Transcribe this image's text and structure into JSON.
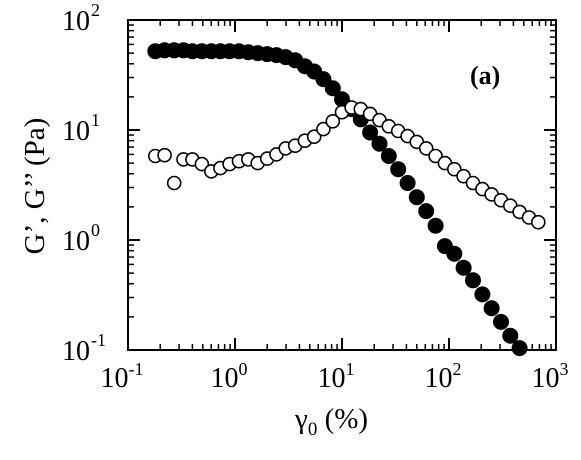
{
  "chart_data": {
    "type": "scatter",
    "panel_label": "(a)",
    "xlabel": {
      "base": "γ",
      "sub": "0",
      "rest": " (%)"
    },
    "ylabel": "G’, G’’ (Pa)",
    "xscale": "log",
    "yscale": "log",
    "xlim": [
      0.1,
      1000
    ],
    "ylim": [
      0.1,
      100
    ],
    "grid": false,
    "x_ticks": [
      {
        "base": "10",
        "exp": "-1",
        "value": 0.1
      },
      {
        "base": "10",
        "exp": "0",
        "value": 1
      },
      {
        "base": "10",
        "exp": "1",
        "value": 10
      },
      {
        "base": "10",
        "exp": "2",
        "value": 100
      },
      {
        "base": "10",
        "exp": "3",
        "value": 1000
      }
    ],
    "y_ticks": [
      {
        "base": "10",
        "exp": "-1",
        "value": 0.1
      },
      {
        "base": "10",
        "exp": "0",
        "value": 1
      },
      {
        "base": "10",
        "exp": "1",
        "value": 10
      },
      {
        "base": "10",
        "exp": "2",
        "value": 100
      }
    ],
    "series": [
      {
        "marker": "filled-circle",
        "color": "#000000",
        "points": [
          [
            0.18,
            52
          ],
          [
            0.22,
            53
          ],
          [
            0.27,
            53
          ],
          [
            0.33,
            53
          ],
          [
            0.4,
            52
          ],
          [
            0.49,
            52
          ],
          [
            0.6,
            52
          ],
          [
            0.73,
            52
          ],
          [
            0.89,
            52
          ],
          [
            1.09,
            52
          ],
          [
            1.33,
            51
          ],
          [
            1.63,
            50
          ],
          [
            2.0,
            49
          ],
          [
            2.44,
            48
          ],
          [
            2.98,
            46
          ],
          [
            3.65,
            43
          ],
          [
            4.5,
            38
          ],
          [
            5.5,
            34
          ],
          [
            6.7,
            29
          ],
          [
            8.2,
            24
          ],
          [
            10.0,
            19
          ],
          [
            12.3,
            15.5
          ],
          [
            15,
            12.5
          ],
          [
            18.3,
            9.5
          ],
          [
            22.4,
            7.5
          ],
          [
            27.4,
            5.8
          ],
          [
            33.5,
            4.4
          ],
          [
            41,
            3.3
          ],
          [
            50,
            2.45
          ],
          [
            61.2,
            1.83
          ],
          [
            75,
            1.35
          ],
          [
            91.5,
            0.88
          ],
          [
            112,
            0.75
          ],
          [
            137,
            0.56
          ],
          [
            167.5,
            0.43
          ],
          [
            205,
            0.32
          ],
          [
            250,
            0.24
          ],
          [
            306,
            0.18
          ],
          [
            374,
            0.135
          ],
          [
            457,
            0.104
          ]
        ]
      },
      {
        "marker": "open-circle",
        "color": "#000000",
        "points": [
          [
            0.18,
            5.8
          ],
          [
            0.22,
            5.9
          ],
          [
            0.27,
            3.3
          ],
          [
            0.33,
            5.4
          ],
          [
            0.4,
            5.4
          ],
          [
            0.49,
            4.9
          ],
          [
            0.6,
            4.2
          ],
          [
            0.73,
            4.5
          ],
          [
            0.89,
            4.9
          ],
          [
            1.09,
            5.2
          ],
          [
            1.33,
            5.4
          ],
          [
            1.63,
            5.0
          ],
          [
            2.0,
            5.5
          ],
          [
            2.44,
            6.0
          ],
          [
            2.98,
            6.8
          ],
          [
            3.65,
            7.2
          ],
          [
            4.5,
            8.0
          ],
          [
            5.5,
            8.7
          ],
          [
            6.7,
            10.2
          ],
          [
            8.2,
            12.0
          ],
          [
            10.0,
            14.5
          ],
          [
            12.3,
            16.0
          ],
          [
            15,
            15.5
          ],
          [
            18.3,
            14.0
          ],
          [
            22.4,
            12.3
          ],
          [
            27.4,
            10.8
          ],
          [
            33.5,
            9.8
          ],
          [
            41,
            8.8
          ],
          [
            50,
            7.8
          ],
          [
            61.2,
            6.8
          ],
          [
            75,
            5.8
          ],
          [
            91.5,
            5.0
          ],
          [
            112,
            4.4
          ],
          [
            137,
            3.8
          ],
          [
            167.5,
            3.3
          ],
          [
            205,
            2.9
          ],
          [
            250,
            2.6
          ],
          [
            306,
            2.3
          ],
          [
            374,
            2.05
          ],
          [
            457,
            1.8
          ],
          [
            559,
            1.6
          ],
          [
            683,
            1.45
          ]
        ]
      }
    ]
  }
}
